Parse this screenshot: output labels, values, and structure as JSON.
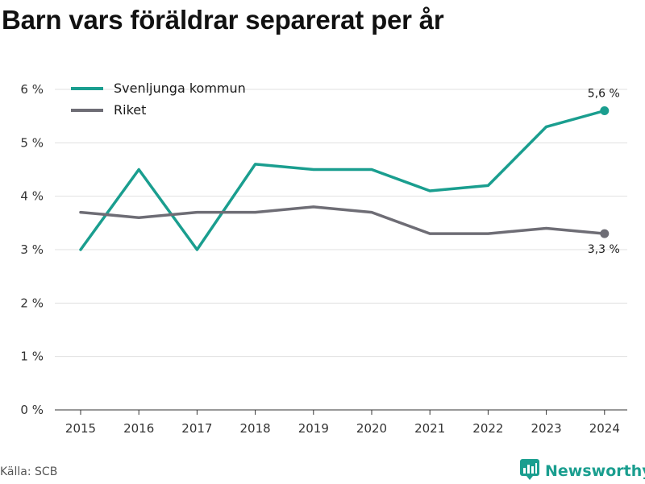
{
  "title": "Barn vars föräldrar separerat per år",
  "source": "Källa: SCB",
  "brand": {
    "name": "Newsworthy",
    "icon": "newsworthy-logo-icon",
    "color": "#1a9e8f"
  },
  "chart_data": {
    "type": "line",
    "title": "Barn vars föräldrar separerat per år",
    "xlabel": "",
    "ylabel": "",
    "x": [
      "2015",
      "2016",
      "2017",
      "2018",
      "2019",
      "2020",
      "2021",
      "2022",
      "2023",
      "2024"
    ],
    "ylim": [
      0,
      6
    ],
    "yticks": [
      0,
      1,
      2,
      3,
      4,
      5,
      6
    ],
    "ytick_labels": [
      "0 %",
      "1 %",
      "2 %",
      "3 %",
      "4 %",
      "5 %",
      "6 %"
    ],
    "grid": true,
    "legend_position": "top-left",
    "series": [
      {
        "name": "Svenljunga kommun",
        "color": "#1a9e8f",
        "values": [
          3.0,
          4.5,
          3.0,
          4.6,
          4.5,
          4.5,
          4.1,
          4.2,
          5.3,
          5.6
        ],
        "end_label": "5,6 %"
      },
      {
        "name": "Riket",
        "color": "#6e6d75",
        "values": [
          3.7,
          3.6,
          3.7,
          3.7,
          3.8,
          3.7,
          3.3,
          3.3,
          3.4,
          3.3
        ],
        "end_label": "3,3 %"
      }
    ]
  }
}
